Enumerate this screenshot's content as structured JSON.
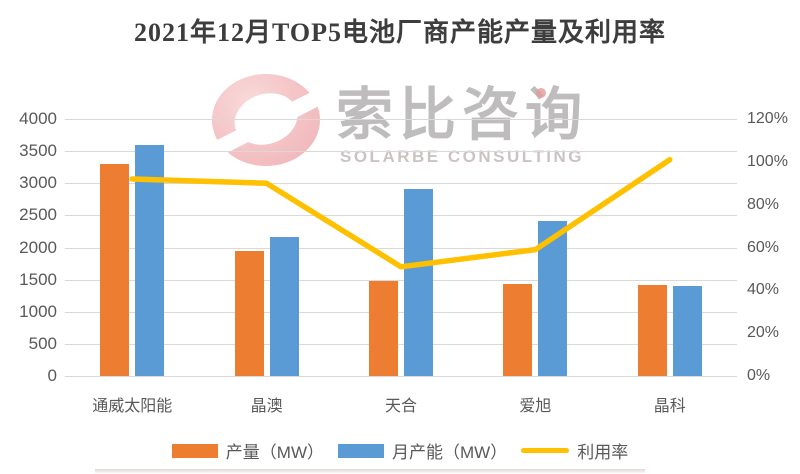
{
  "title": "2021年12月TOP5电池厂商产能产量及利用率",
  "watermark": {
    "cn": "索比咨询",
    "en": "SOLARBE CONSULTING"
  },
  "colors": {
    "production_bar": "#ED7D31",
    "capacity_bar": "#5B9BD5",
    "utilization_line": "#FFC000",
    "gridline": "#d9d9d9",
    "axis_text": "#595959"
  },
  "chart_data": {
    "type": "bar",
    "subtype": "grouped bars with secondary-axis line",
    "title": "2021年12月TOP5电池厂商产能产量及利用率",
    "categories": [
      "通威太阳能",
      "晶澳",
      "天合",
      "爱旭",
      "晶科"
    ],
    "series": [
      {
        "name": "产量（MW）",
        "type": "bar",
        "axis": "left",
        "color": "#ED7D31",
        "values": [
          3300,
          1950,
          1480,
          1430,
          1420
        ]
      },
      {
        "name": "月产能（MW）",
        "type": "bar",
        "axis": "left",
        "color": "#5B9BD5",
        "values": [
          3590,
          2160,
          2910,
          2420,
          1400
        ]
      },
      {
        "name": "利用率",
        "type": "line",
        "axis": "right",
        "color": "#FFC000",
        "values": [
          92,
          90,
          51,
          59,
          101
        ]
      }
    ],
    "left_axis": {
      "min": 0,
      "max": 4000,
      "step": 500,
      "ticks": [
        "0",
        "500",
        "1000",
        "1500",
        "2000",
        "2500",
        "3000",
        "3500",
        "4000"
      ]
    },
    "right_axis": {
      "min": 0,
      "max": 120,
      "step": 20,
      "ticks": [
        "0%",
        "20%",
        "40%",
        "60%",
        "80%",
        "100%",
        "120%"
      ]
    },
    "grid": true,
    "legend_position": "bottom",
    "xlabel": "",
    "ylabel": ""
  }
}
